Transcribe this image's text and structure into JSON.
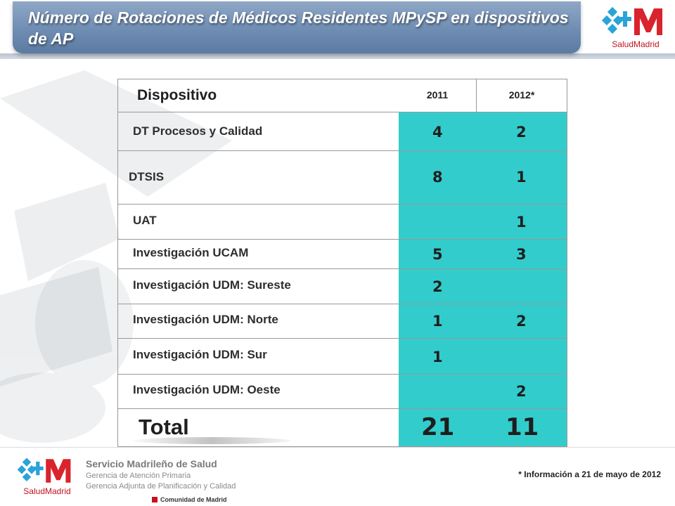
{
  "slide": {
    "title": "Número de Rotaciones de Médicos Residentes MPySP en dispositivos de AP",
    "accent_color": "#33cccc",
    "banner_color": "#6f8db3"
  },
  "logo": {
    "icon": "salud-madrid-logo",
    "caption_salud": "Salud",
    "caption_madrid": "Madrid"
  },
  "table": {
    "headers": {
      "device": "Dispositivo",
      "y2011": "2011",
      "y2012": "2012*"
    },
    "rows": [
      {
        "name": "DT Procesos y Calidad",
        "y2011": "4",
        "y2012": "2"
      },
      {
        "name": "DTSIS",
        "y2011": "8",
        "y2012": "1"
      },
      {
        "name": "UAT",
        "y2011": "",
        "y2012": "1"
      },
      {
        "name": "Investigación UCAM",
        "y2011": "5",
        "y2012": "3"
      },
      {
        "name": "Investigación UDM: Sureste",
        "y2011": "2",
        "y2012": ""
      },
      {
        "name": "Investigación UDM: Norte",
        "y2011": "1",
        "y2012": "2"
      },
      {
        "name": "Investigación UDM: Sur",
        "y2011": "1",
        "y2012": ""
      },
      {
        "name": "Investigación UDM: Oeste",
        "y2011": "",
        "y2012": "2"
      }
    ],
    "total": {
      "label": "Total",
      "y2011": "21",
      "y2012": "11"
    }
  },
  "footer": {
    "org_name": "Servicio Madrileño de Salud",
    "org_line1": "Gerencia de Atención Primaria",
    "org_line2": "Gerencia Adjunta de Planificación y Calidad",
    "community": "Comunidad de Madrid",
    "note": "* Información a 21 de mayo de 2012"
  }
}
